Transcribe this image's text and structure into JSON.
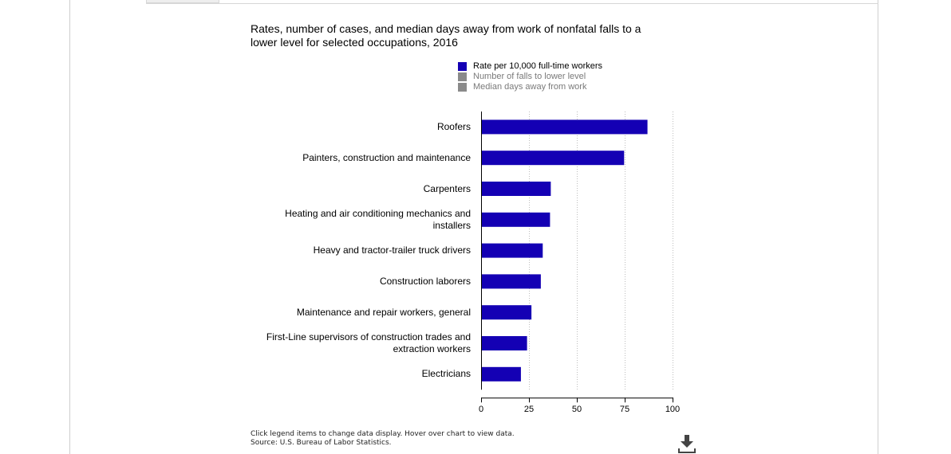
{
  "chart_data": {
    "type": "bar",
    "orientation": "horizontal",
    "title": "Rates, number of cases, and median days away from work of nonfatal falls to a lower level for selected occupations, 2016",
    "categories": [
      "Roofers",
      "Painters, construction and maintenance",
      "Carpenters",
      "Heating and air conditioning mechanics and installers",
      "Heavy and tractor-trailer truck drivers",
      "Construction laborers",
      "Maintenance and repair workers, general",
      "First-Line supervisors of construction trades and extraction workers",
      "Electricians"
    ],
    "category_lines": [
      [
        "Roofers"
      ],
      [
        "Painters, construction and maintenance"
      ],
      [
        "Carpenters"
      ],
      [
        "Heating and air conditioning mechanics and",
        "installers"
      ],
      [
        "Heavy and tractor-trailer truck drivers"
      ],
      [
        "Construction laborers"
      ],
      [
        "Maintenance and repair workers, general"
      ],
      [
        "First-Line supervisors of construction trades and",
        "extraction workers"
      ],
      [
        "Electricians"
      ]
    ],
    "series": [
      {
        "name": "Rate per 10,000 full-time workers",
        "values": [
          86.9,
          74.7,
          36.4,
          36.0,
          32.2,
          31.2,
          26.3,
          24.0,
          20.8
        ],
        "color": "#1400b4",
        "active": true
      },
      {
        "name": "Number of falls to lower level",
        "color": "#8a8a8a",
        "active": false
      },
      {
        "name": "Median days away from work",
        "color": "#8a8a8a",
        "active": false
      }
    ],
    "xlim": [
      0,
      100
    ],
    "xticks": [
      0,
      25,
      50,
      75,
      100
    ],
    "grid": true,
    "legend_position": "top"
  },
  "footer": {
    "hint": "Click legend items to change data display. Hover over chart to view data.",
    "source": "Source: U.S. Bureau of Labor Statistics."
  },
  "icons": {
    "download": "download-icon"
  }
}
